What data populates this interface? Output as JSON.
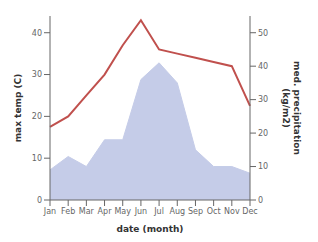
{
  "chart_data": {
    "type": "line",
    "categories": [
      "Jan",
      "Feb",
      "Mar",
      "Apr",
      "May",
      "Jun",
      "Jul",
      "Aug",
      "Sep",
      "Oct",
      "Nov",
      "Dec"
    ],
    "xlabel": "date (month)",
    "ylabel": "max temp (C)",
    "y2label": "med. precipitation\n(kg/m2)",
    "ylim": [
      0,
      44
    ],
    "yticks": [
      0,
      10,
      20,
      30,
      40
    ],
    "y2lim": [
      0,
      55
    ],
    "y2ticks": [
      0,
      10,
      20,
      30,
      40,
      50
    ],
    "grid": false,
    "series": [
      {
        "type": "area",
        "axis": "y2",
        "color": "#c5cce8",
        "values": [
          9,
          13,
          10,
          18,
          18,
          36,
          41,
          35,
          15,
          10,
          10,
          8
        ]
      },
      {
        "type": "line",
        "axis": "y",
        "color": "#c0504d",
        "values": [
          17.5,
          20,
          25,
          30,
          37,
          43,
          36,
          35,
          34,
          33,
          32,
          22.5
        ]
      }
    ]
  }
}
